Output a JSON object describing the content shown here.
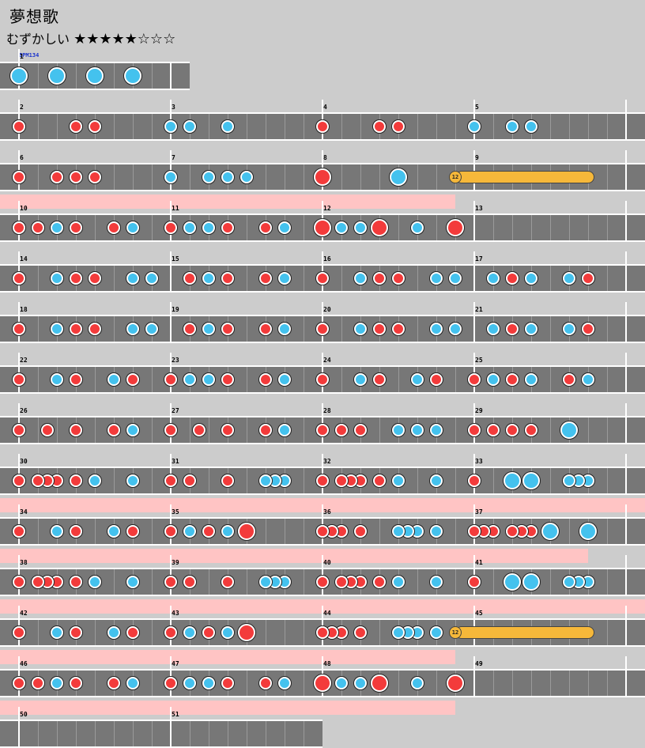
{
  "header": {
    "title": "夢想歌",
    "difficulty_label": "むずかしい",
    "stars": "★★★★★☆☆☆",
    "bpm": "BPM134"
  },
  "colors": {
    "don": "#f33b3b",
    "ka": "#44c2ee",
    "roll": "#f6b83a",
    "gogo": "#ffc4c4",
    "lane": "#777777"
  },
  "measures": [
    {
      "n": "1",
      "notes": [
        [
          0,
          "K"
        ],
        [
          2,
          "K"
        ],
        [
          4,
          "K"
        ],
        [
          6,
          "K"
        ]
      ]
    },
    {
      "n": "2",
      "notes": [
        [
          0,
          "d"
        ],
        [
          3,
          "d"
        ],
        [
          4,
          "d"
        ]
      ]
    },
    {
      "n": "3",
      "notes": [
        [
          0,
          "k"
        ],
        [
          1,
          "k"
        ],
        [
          3,
          "k"
        ]
      ]
    },
    {
      "n": "4",
      "notes": [
        [
          0,
          "d"
        ],
        [
          3,
          "d"
        ],
        [
          4,
          "d"
        ]
      ]
    },
    {
      "n": "5",
      "notes": [
        [
          0,
          "k"
        ],
        [
          2,
          "k"
        ],
        [
          3,
          "k"
        ]
      ]
    },
    {
      "n": "6",
      "notes": [
        [
          0,
          "d"
        ],
        [
          2,
          "d"
        ],
        [
          3,
          "d"
        ],
        [
          4,
          "d"
        ]
      ]
    },
    {
      "n": "7",
      "notes": [
        [
          0,
          "k"
        ],
        [
          2,
          "k"
        ],
        [
          3,
          "k"
        ],
        [
          4,
          "k"
        ]
      ]
    },
    {
      "n": "8",
      "notes": [
        [
          0,
          "D"
        ],
        [
          4,
          "K"
        ]
      ]
    },
    {
      "n": "9",
      "notes": []
    },
    {
      "n": "10",
      "notes": [
        [
          0,
          "d"
        ],
        [
          1,
          "d"
        ],
        [
          2,
          "k"
        ],
        [
          3,
          "d"
        ],
        [
          5,
          "d"
        ],
        [
          6,
          "k"
        ]
      ]
    },
    {
      "n": "11",
      "notes": [
        [
          0,
          "d"
        ],
        [
          1,
          "k"
        ],
        [
          2,
          "k"
        ],
        [
          3,
          "d"
        ],
        [
          5,
          "d"
        ],
        [
          6,
          "k"
        ]
      ]
    },
    {
      "n": "12",
      "notes": [
        [
          0,
          "D"
        ],
        [
          1,
          "k"
        ],
        [
          2,
          "k"
        ],
        [
          3,
          "D"
        ],
        [
          5,
          "k"
        ],
        [
          7,
          "D"
        ]
      ]
    },
    {
      "n": "13",
      "notes": []
    },
    {
      "n": "14",
      "notes": [
        [
          0,
          "d"
        ],
        [
          2,
          "k"
        ],
        [
          3,
          "d"
        ],
        [
          4,
          "d"
        ],
        [
          6,
          "k"
        ],
        [
          7,
          "k"
        ]
      ]
    },
    {
      "n": "15",
      "notes": [
        [
          1,
          "d"
        ],
        [
          2,
          "k"
        ],
        [
          3,
          "d"
        ],
        [
          5,
          "d"
        ],
        [
          6,
          "k"
        ]
      ]
    },
    {
      "n": "16",
      "notes": [
        [
          0,
          "d"
        ],
        [
          2,
          "k"
        ],
        [
          3,
          "d"
        ],
        [
          4,
          "d"
        ],
        [
          6,
          "k"
        ],
        [
          7,
          "k"
        ]
      ]
    },
    {
      "n": "17",
      "notes": [
        [
          1,
          "k"
        ],
        [
          2,
          "d"
        ],
        [
          3,
          "k"
        ],
        [
          5,
          "k"
        ],
        [
          6,
          "d"
        ]
      ]
    },
    {
      "n": "18",
      "notes": [
        [
          0,
          "d"
        ],
        [
          2,
          "k"
        ],
        [
          3,
          "d"
        ],
        [
          4,
          "d"
        ],
        [
          6,
          "k"
        ],
        [
          7,
          "k"
        ]
      ]
    },
    {
      "n": "19",
      "notes": [
        [
          1,
          "d"
        ],
        [
          2,
          "k"
        ],
        [
          3,
          "d"
        ],
        [
          5,
          "d"
        ],
        [
          6,
          "k"
        ]
      ]
    },
    {
      "n": "20",
      "notes": [
        [
          0,
          "d"
        ],
        [
          2,
          "k"
        ],
        [
          3,
          "d"
        ],
        [
          4,
          "d"
        ],
        [
          6,
          "k"
        ],
        [
          7,
          "k"
        ]
      ]
    },
    {
      "n": "21",
      "notes": [
        [
          1,
          "k"
        ],
        [
          2,
          "d"
        ],
        [
          3,
          "k"
        ],
        [
          5,
          "k"
        ],
        [
          6,
          "d"
        ]
      ]
    },
    {
      "n": "22",
      "notes": [
        [
          0,
          "d"
        ],
        [
          2,
          "k"
        ],
        [
          3,
          "d"
        ],
        [
          5,
          "k"
        ],
        [
          6,
          "d"
        ]
      ]
    },
    {
      "n": "23",
      "notes": [
        [
          0,
          "d"
        ],
        [
          1,
          "k"
        ],
        [
          2,
          "k"
        ],
        [
          3,
          "d"
        ],
        [
          5,
          "d"
        ],
        [
          6,
          "k"
        ]
      ]
    },
    {
      "n": "24",
      "notes": [
        [
          0,
          "d"
        ],
        [
          2,
          "k"
        ],
        [
          3,
          "d"
        ],
        [
          5,
          "k"
        ],
        [
          6,
          "d"
        ]
      ]
    },
    {
      "n": "25",
      "notes": [
        [
          0,
          "d"
        ],
        [
          1,
          "k"
        ],
        [
          2,
          "d"
        ],
        [
          3,
          "k"
        ],
        [
          5,
          "d"
        ],
        [
          6,
          "k"
        ]
      ]
    },
    {
      "n": "26",
      "notes": [
        [
          0,
          "d"
        ],
        [
          1.5,
          "d"
        ],
        [
          3,
          "d"
        ],
        [
          5,
          "d"
        ],
        [
          6,
          "k"
        ]
      ]
    },
    {
      "n": "27",
      "notes": [
        [
          0,
          "d"
        ],
        [
          1.5,
          "d"
        ],
        [
          3,
          "d"
        ],
        [
          5,
          "d"
        ],
        [
          6,
          "k"
        ]
      ]
    },
    {
      "n": "28",
      "notes": [
        [
          0,
          "d"
        ],
        [
          1,
          "d"
        ],
        [
          2,
          "d"
        ],
        [
          4,
          "k"
        ],
        [
          5,
          "k"
        ],
        [
          6,
          "k"
        ]
      ]
    },
    {
      "n": "29",
      "notes": [
        [
          0,
          "d"
        ],
        [
          1,
          "d"
        ],
        [
          2,
          "d"
        ],
        [
          3,
          "d"
        ],
        [
          5,
          "K"
        ]
      ]
    },
    {
      "n": "30",
      "notes": [
        [
          0,
          "d"
        ],
        [
          1,
          "d"
        ],
        [
          1.5,
          "d"
        ],
        [
          2,
          "d"
        ],
        [
          3,
          "d"
        ],
        [
          4,
          "k"
        ],
        [
          6,
          "k"
        ]
      ]
    },
    {
      "n": "31",
      "notes": [
        [
          0,
          "d"
        ],
        [
          1,
          "d"
        ],
        [
          3,
          "d"
        ],
        [
          5,
          "k"
        ],
        [
          5.5,
          "k"
        ],
        [
          6,
          "k"
        ]
      ]
    },
    {
      "n": "32",
      "notes": [
        [
          0,
          "d"
        ],
        [
          1,
          "d"
        ],
        [
          1.5,
          "d"
        ],
        [
          2,
          "d"
        ],
        [
          3,
          "d"
        ],
        [
          4,
          "k"
        ],
        [
          6,
          "k"
        ]
      ]
    },
    {
      "n": "33",
      "notes": [
        [
          0,
          "d"
        ],
        [
          2,
          "K"
        ],
        [
          3,
          "K"
        ],
        [
          5,
          "k"
        ],
        [
          5.5,
          "k"
        ],
        [
          6,
          "k"
        ]
      ]
    },
    {
      "n": "34",
      "notes": [
        [
          0,
          "d"
        ],
        [
          2,
          "k"
        ],
        [
          3,
          "d"
        ],
        [
          5,
          "k"
        ],
        [
          6,
          "d"
        ]
      ]
    },
    {
      "n": "35",
      "notes": [
        [
          0,
          "d"
        ],
        [
          1,
          "k"
        ],
        [
          2,
          "d"
        ],
        [
          3,
          "k"
        ],
        [
          4,
          "D"
        ]
      ]
    },
    {
      "n": "36",
      "notes": [
        [
          0,
          "d"
        ],
        [
          0.5,
          "d"
        ],
        [
          1,
          "d"
        ],
        [
          2,
          "d"
        ],
        [
          4,
          "k"
        ],
        [
          4.5,
          "k"
        ],
        [
          5,
          "k"
        ],
        [
          6,
          "k"
        ]
      ]
    },
    {
      "n": "37",
      "notes": [
        [
          0,
          "d"
        ],
        [
          0.5,
          "d"
        ],
        [
          1,
          "d"
        ],
        [
          2,
          "d"
        ],
        [
          2.5,
          "d"
        ],
        [
          3,
          "d"
        ],
        [
          4,
          "K"
        ],
        [
          6,
          "K"
        ]
      ]
    },
    {
      "n": "38",
      "notes": [
        [
          0,
          "d"
        ],
        [
          1,
          "d"
        ],
        [
          1.5,
          "d"
        ],
        [
          2,
          "d"
        ],
        [
          3,
          "d"
        ],
        [
          4,
          "k"
        ],
        [
          6,
          "k"
        ]
      ]
    },
    {
      "n": "39",
      "notes": [
        [
          0,
          "d"
        ],
        [
          1,
          "d"
        ],
        [
          3,
          "d"
        ],
        [
          5,
          "k"
        ],
        [
          5.5,
          "k"
        ],
        [
          6,
          "k"
        ]
      ]
    },
    {
      "n": "40",
      "notes": [
        [
          0,
          "d"
        ],
        [
          1,
          "d"
        ],
        [
          1.5,
          "d"
        ],
        [
          2,
          "d"
        ],
        [
          3,
          "d"
        ],
        [
          4,
          "k"
        ],
        [
          6,
          "k"
        ]
      ]
    },
    {
      "n": "41",
      "notes": [
        [
          0,
          "d"
        ],
        [
          2,
          "K"
        ],
        [
          3,
          "K"
        ],
        [
          5,
          "k"
        ],
        [
          5.5,
          "k"
        ],
        [
          6,
          "k"
        ]
      ]
    },
    {
      "n": "42",
      "notes": [
        [
          0,
          "d"
        ],
        [
          2,
          "k"
        ],
        [
          3,
          "d"
        ],
        [
          5,
          "k"
        ],
        [
          6,
          "d"
        ]
      ]
    },
    {
      "n": "43",
      "notes": [
        [
          0,
          "d"
        ],
        [
          1,
          "k"
        ],
        [
          2,
          "d"
        ],
        [
          3,
          "k"
        ],
        [
          4,
          "D"
        ]
      ]
    },
    {
      "n": "44",
      "notes": [
        [
          0,
          "d"
        ],
        [
          0.5,
          "d"
        ],
        [
          1,
          "d"
        ],
        [
          2,
          "d"
        ],
        [
          4,
          "k"
        ],
        [
          4.5,
          "k"
        ],
        [
          5,
          "k"
        ],
        [
          6,
          "k"
        ]
      ]
    },
    {
      "n": "45",
      "notes": []
    },
    {
      "n": "46",
      "notes": [
        [
          0,
          "d"
        ],
        [
          1,
          "d"
        ],
        [
          2,
          "k"
        ],
        [
          3,
          "d"
        ],
        [
          5,
          "d"
        ],
        [
          6,
          "k"
        ]
      ]
    },
    {
      "n": "47",
      "notes": [
        [
          0,
          "d"
        ],
        [
          1,
          "k"
        ],
        [
          2,
          "k"
        ],
        [
          3,
          "d"
        ],
        [
          5,
          "d"
        ],
        [
          6,
          "k"
        ]
      ]
    },
    {
      "n": "48",
      "notes": [
        [
          0,
          "D"
        ],
        [
          1,
          "k"
        ],
        [
          2,
          "k"
        ],
        [
          3,
          "D"
        ],
        [
          5,
          "k"
        ],
        [
          7,
          "D"
        ]
      ]
    },
    {
      "n": "49",
      "notes": []
    },
    {
      "n": "50",
      "notes": []
    },
    {
      "n": "51",
      "notes": []
    }
  ],
  "rolls": [
    {
      "measure": "8",
      "start_beat": 7,
      "end_measure": "9",
      "end_beat": 6,
      "label": "12"
    },
    {
      "measure": "44",
      "start_beat": 7,
      "end_measure": "45",
      "end_beat": 6,
      "label": "12"
    }
  ],
  "gogo_rows": [
    {
      "row": 3,
      "start_measure": 0,
      "end_beat": "12:7"
    },
    {
      "row": 9,
      "full": true
    },
    {
      "row": 10,
      "start_measure": 0,
      "end_beat": "37:6"
    },
    {
      "row": 11,
      "full": true
    },
    {
      "row": 12,
      "start_measure": 0,
      "end_beat": "44:7"
    },
    {
      "row": 13,
      "start_measure": 0,
      "end_beat": "48:7"
    }
  ]
}
